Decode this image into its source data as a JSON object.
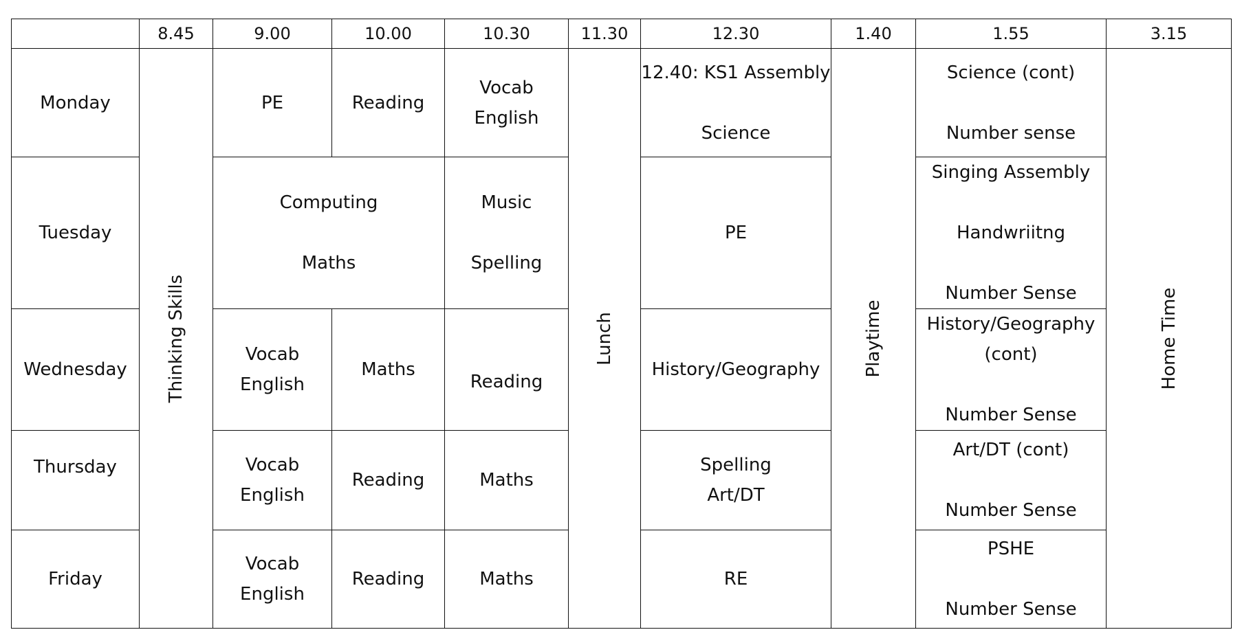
{
  "times": [
    "",
    "8.45",
    "9.00",
    "10.00",
    "10.30",
    "11.30",
    "12.30",
    "1.40",
    "1.55",
    "3.15"
  ],
  "days": [
    "Monday",
    "Tuesday",
    "Wednesday",
    "Thursday",
    "Friday"
  ],
  "spans": {
    "thinking_skills": "Thinking Skills",
    "lunch": "Lunch",
    "playtime": "Playtime",
    "home_time": "Home Time"
  },
  "monday": {
    "s900": "PE",
    "s1000": "Reading",
    "s1030": [
      "Vocab",
      "English"
    ],
    "s1230": [
      "12.40: KS1 Assembly",
      "Science"
    ],
    "s155": [
      "Science (cont)",
      "Number sense"
    ]
  },
  "tuesday": {
    "s900_1000": [
      "Computing",
      "Maths"
    ],
    "s1030": [
      "Music",
      "Spelling"
    ],
    "s1230": "PE",
    "s155": [
      "Singing Assembly",
      "Handwriitng",
      "Number Sense"
    ]
  },
  "wednesday": {
    "s900": [
      "Vocab",
      "English"
    ],
    "s1000": "Maths",
    "s1030": "Reading",
    "s1230": "History/Geography",
    "s155": [
      "History/Geography",
      "(cont)",
      "Number Sense"
    ]
  },
  "thursday": {
    "s900": [
      "Vocab",
      "English"
    ],
    "s1000": "Reading",
    "s1030": "Maths",
    "s1230": [
      "Spelling",
      "Art/DT"
    ],
    "s155": [
      "Art/DT (cont)",
      "Number Sense"
    ]
  },
  "friday": {
    "s900": [
      "Vocab",
      "English"
    ],
    "s1000": "Reading",
    "s1030": "Maths",
    "s1230": "RE",
    "s155": [
      "PSHE",
      "Number Sense"
    ]
  }
}
